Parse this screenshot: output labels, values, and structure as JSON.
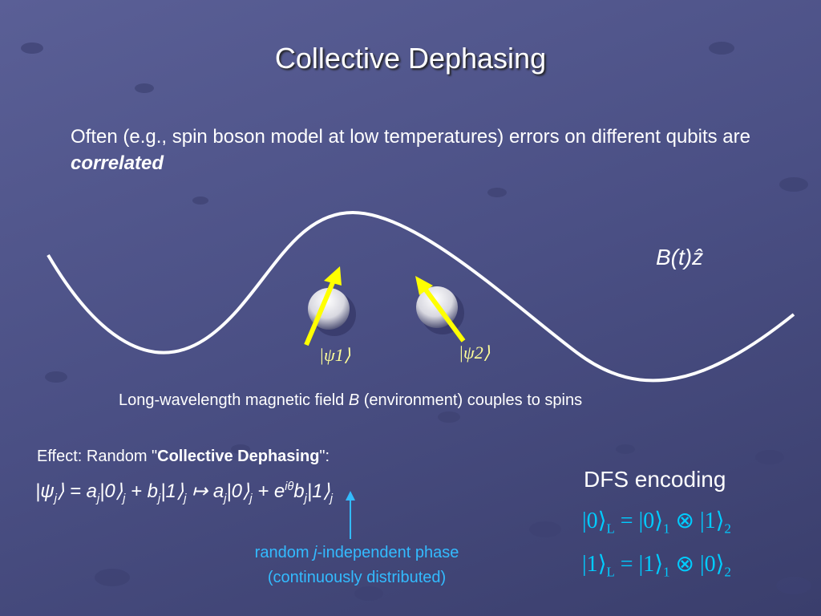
{
  "title": "Collective Dephasing",
  "intro": {
    "text": "Often (e.g., spin boson model at low temperatures) errors on different qubits are ",
    "emphasis": "correlated"
  },
  "figure": {
    "field_label": "B(t)ẑ",
    "spin_labels": [
      "|ψ1⟩",
      "|ψ2⟩"
    ]
  },
  "caption": [
    "Long-wavelength magnetic field ",
    "B",
    " (environment) couples to spins"
  ],
  "effect": [
    "Effect: Random \"",
    "Collective Dephasing",
    "\":"
  ],
  "equation": [
    "|ψ",
    "j",
    "⟩ = a",
    "j",
    "|0⟩",
    "j",
    " + b",
    "j",
    "|1⟩",
    "j",
    " ↦ a",
    "j",
    "|0⟩",
    "j",
    " + e",
    "iθ",
    "b",
    "j",
    "|1⟩",
    "j"
  ],
  "phase_note": [
    "random ",
    "j",
    "-independent phase",
    "(continuously distributed)"
  ],
  "dfs": {
    "heading": "DFS encoding",
    "lines": [
      [
        "|0⟩",
        "L",
        " = |0⟩",
        "1",
        " ⊗ |1⟩",
        "2"
      ],
      [
        "|1⟩",
        "L",
        " = |1⟩",
        "1",
        " ⊗ |0⟩",
        "2"
      ]
    ]
  }
}
